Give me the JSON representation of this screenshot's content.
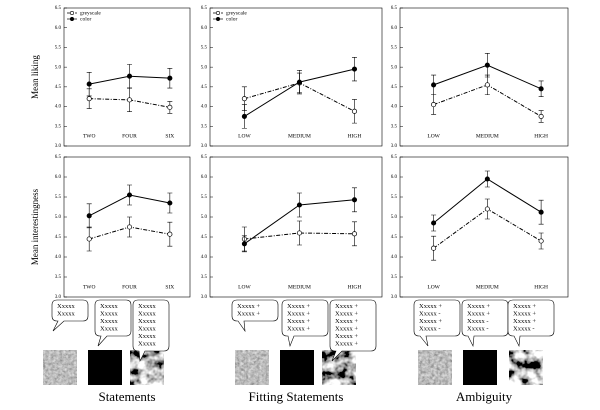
{
  "chart_data": [
    {
      "type": "line",
      "ylabel": "Mean liking",
      "categories": [
        "TWO",
        "FOUR",
        "SIX"
      ],
      "ylim": [
        3,
        6.5
      ],
      "yticks": [
        {
          "value": 3,
          "label": "3.0"
        },
        3.5,
        {
          "value": 4,
          "label": "4.0"
        },
        4.5,
        {
          "value": 5,
          "label": "5.0"
        },
        5.5,
        {
          "value": 6,
          "label": "6.0"
        },
        6.5
      ],
      "legend": true,
      "series": [
        {
          "name": "greyscale",
          "color": "#000000",
          "marker": "open",
          "dash": "dashdot",
          "values": [
            4.2,
            4.17,
            3.98
          ],
          "errors": [
            0.25,
            0.3,
            0.15
          ]
        },
        {
          "name": "color",
          "color": "#000000",
          "marker": "filled",
          "dash": "solid",
          "values": [
            4.57,
            4.77,
            4.72
          ],
          "errors": [
            0.3,
            0.3,
            0.25
          ]
        }
      ]
    },
    {
      "type": "line",
      "categories": [
        "LOW",
        "MEDIUM",
        "HIGH"
      ],
      "ylim": [
        3,
        6.5
      ],
      "yticks": [
        {
          "value": 3,
          "label": "3.0"
        },
        3.5,
        {
          "value": 4,
          "label": "4.0"
        },
        4.5,
        {
          "value": 5,
          "label": "5.0"
        },
        5.5,
        {
          "value": 6,
          "label": "6.0"
        },
        6.5
      ],
      "legend": true,
      "series": [
        {
          "name": "greyscale",
          "color": "#000000",
          "marker": "open",
          "dash": "dashdot",
          "values": [
            4.2,
            4.6,
            3.88
          ],
          "errors": [
            0.3,
            0.25,
            0.3
          ]
        },
        {
          "name": "color",
          "color": "#000000",
          "marker": "filled",
          "dash": "solid",
          "values": [
            3.75,
            4.62,
            4.95
          ],
          "errors": [
            0.3,
            0.3,
            0.3
          ]
        }
      ]
    },
    {
      "type": "line",
      "categories": [
        "LOW",
        "MEDIUM",
        "HIGH"
      ],
      "ylim": [
        3,
        6.5
      ],
      "yticks": [
        {
          "value": 3,
          "label": "3.0"
        },
        3.5,
        {
          "value": 4,
          "label": "4.0"
        },
        4.5,
        {
          "value": 5,
          "label": "5.0"
        },
        5.5,
        {
          "value": 6,
          "label": "6.0"
        },
        6.5
      ],
      "legend": false,
      "series": [
        {
          "name": "greyscale",
          "color": "#000000",
          "marker": "open",
          "dash": "dashdot",
          "values": [
            4.05,
            4.55,
            3.75
          ],
          "errors": [
            0.25,
            0.25,
            0.15
          ]
        },
        {
          "name": "color",
          "color": "#000000",
          "marker": "filled",
          "dash": "solid",
          "values": [
            4.55,
            5.05,
            4.45
          ],
          "errors": [
            0.25,
            0.3,
            0.2
          ]
        }
      ]
    },
    {
      "type": "line",
      "ylabel": "Mean interestingness",
      "categories": [
        "TWO",
        "FOUR",
        "SIX"
      ],
      "ylim": [
        3,
        6.5
      ],
      "yticks": [
        {
          "value": 3,
          "label": "3.0"
        },
        3.5,
        {
          "value": 4,
          "label": "4.0"
        },
        4.5,
        {
          "value": 5,
          "label": "5.0"
        },
        5.5,
        {
          "value": 6,
          "label": "6.0"
        },
        6.5
      ],
      "legend": false,
      "series": [
        {
          "name": "greyscale",
          "color": "#000000",
          "marker": "open",
          "dash": "dashdot",
          "values": [
            4.45,
            4.75,
            4.57
          ],
          "errors": [
            0.3,
            0.25,
            0.3
          ]
        },
        {
          "name": "color",
          "color": "#000000",
          "marker": "filled",
          "dash": "solid",
          "values": [
            5.03,
            5.55,
            5.35
          ],
          "errors": [
            0.3,
            0.25,
            0.25
          ]
        }
      ]
    },
    {
      "type": "line",
      "categories": [
        "LOW",
        "MEDIUM",
        "HIGH"
      ],
      "ylim": [
        3,
        6.5
      ],
      "yticks": [
        {
          "value": 3,
          "label": "3.0"
        },
        3.5,
        {
          "value": 4,
          "label": "4.0"
        },
        4.5,
        {
          "value": 5,
          "label": "5.0"
        },
        5.5,
        {
          "value": 6,
          "label": "6.0"
        },
        6.5
      ],
      "legend": false,
      "series": [
        {
          "name": "greyscale",
          "color": "#000000",
          "marker": "open",
          "dash": "dashdot",
          "values": [
            4.45,
            4.6,
            4.58
          ],
          "errors": [
            0.3,
            0.3,
            0.3
          ]
        },
        {
          "name": "color",
          "color": "#000000",
          "marker": "filled",
          "dash": "solid",
          "values": [
            4.33,
            5.3,
            5.43
          ],
          "errors": [
            0.2,
            0.3,
            0.3
          ]
        }
      ]
    },
    {
      "type": "line",
      "categories": [
        "LOW",
        "MEDIUM",
        "HIGH"
      ],
      "ylim": [
        3,
        6.5
      ],
      "yticks": [
        {
          "value": 3,
          "label": "3.0"
        },
        3.5,
        {
          "value": 4,
          "label": "4.0"
        },
        4.5,
        {
          "value": 5,
          "label": "5.0"
        },
        5.5,
        {
          "value": 6,
          "label": "6.0"
        },
        6.5
      ],
      "legend": false,
      "series": [
        {
          "name": "greyscale",
          "color": "#000000",
          "marker": "open",
          "dash": "dashdot",
          "values": [
            4.22,
            5.2,
            4.4
          ],
          "errors": [
            0.3,
            0.25,
            0.2
          ]
        },
        {
          "name": "color",
          "color": "#000000",
          "marker": "filled",
          "dash": "solid",
          "values": [
            4.85,
            5.95,
            5.12
          ],
          "errors": [
            0.2,
            0.2,
            0.3
          ]
        }
      ]
    }
  ],
  "columns": [
    {
      "title": "Statements",
      "bubbles": [
        [
          "Xxxxx",
          "Xxxxx"
        ],
        [
          "Xxxxx",
          "Xxxxx",
          "Xxxxx",
          "Xxxxx"
        ],
        [
          "Xxxxx",
          "Xxxxx",
          "Xxxxx",
          "Xxxxx",
          "Xxxxx",
          "Xxxxx"
        ]
      ]
    },
    {
      "title": "Fitting Statements",
      "bubbles": [
        [
          "Xxxxx +",
          "Xxxxx +"
        ],
        [
          "Xxxxx +",
          "Xxxxx +",
          "Xxxxx +",
          "Xxxxx +"
        ],
        [
          "Xxxxx +",
          "Xxxxx +",
          "Xxxxx +",
          "Xxxxx +",
          "Xxxxx +",
          "Xxxxx +"
        ]
      ]
    },
    {
      "title": "Ambiguity",
      "bubbles": [
        [
          "Xxxxx +",
          "Xxxxx -",
          "Xxxxx +",
          "Xxxxx -"
        ],
        [
          "Xxxxx +",
          "Xxxxx +",
          "Xxxxx -",
          "Xxxxx -"
        ],
        [
          "Xxxxx +",
          "Xxxxx +",
          "Xxxxx +",
          "Xxxxx -"
        ]
      ]
    }
  ]
}
